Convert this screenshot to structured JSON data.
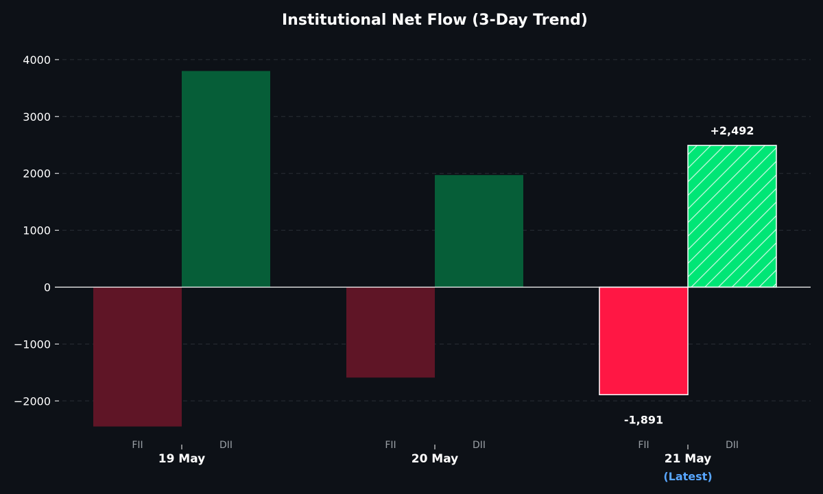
{
  "chart_data": {
    "type": "bar",
    "title": "Institutional Net Flow (3-Day Trend)",
    "categories": [
      "19 May",
      "20 May",
      "21 May"
    ],
    "subcategories": [
      "FII",
      "DII"
    ],
    "series": [
      {
        "name": "FII",
        "values": [
          -2450,
          -1590,
          -1891
        ]
      },
      {
        "name": "DII",
        "values": [
          3800,
          1970,
          2492
        ]
      }
    ],
    "ylim": [
      -2550,
      4300
    ],
    "yticks": [
      -2000,
      -1000,
      0,
      1000,
      2000,
      3000,
      4000
    ],
    "ytick_labels": [
      "−2000",
      "−1000",
      "0",
      "1000",
      "2000",
      "3000",
      "4000"
    ],
    "grid": true,
    "latest_note": "(Latest)",
    "data_labels": {
      "fii_latest": "-1,891",
      "dii_latest": "+2,492"
    },
    "colors": {
      "background": "#0d1117",
      "fii": "#5f1526",
      "dii": "#065e38",
      "fii_latest": "#ff1744",
      "dii_latest": "#00e676",
      "latest_text": "#58a6ff",
      "grid": "#2a2f36"
    }
  }
}
